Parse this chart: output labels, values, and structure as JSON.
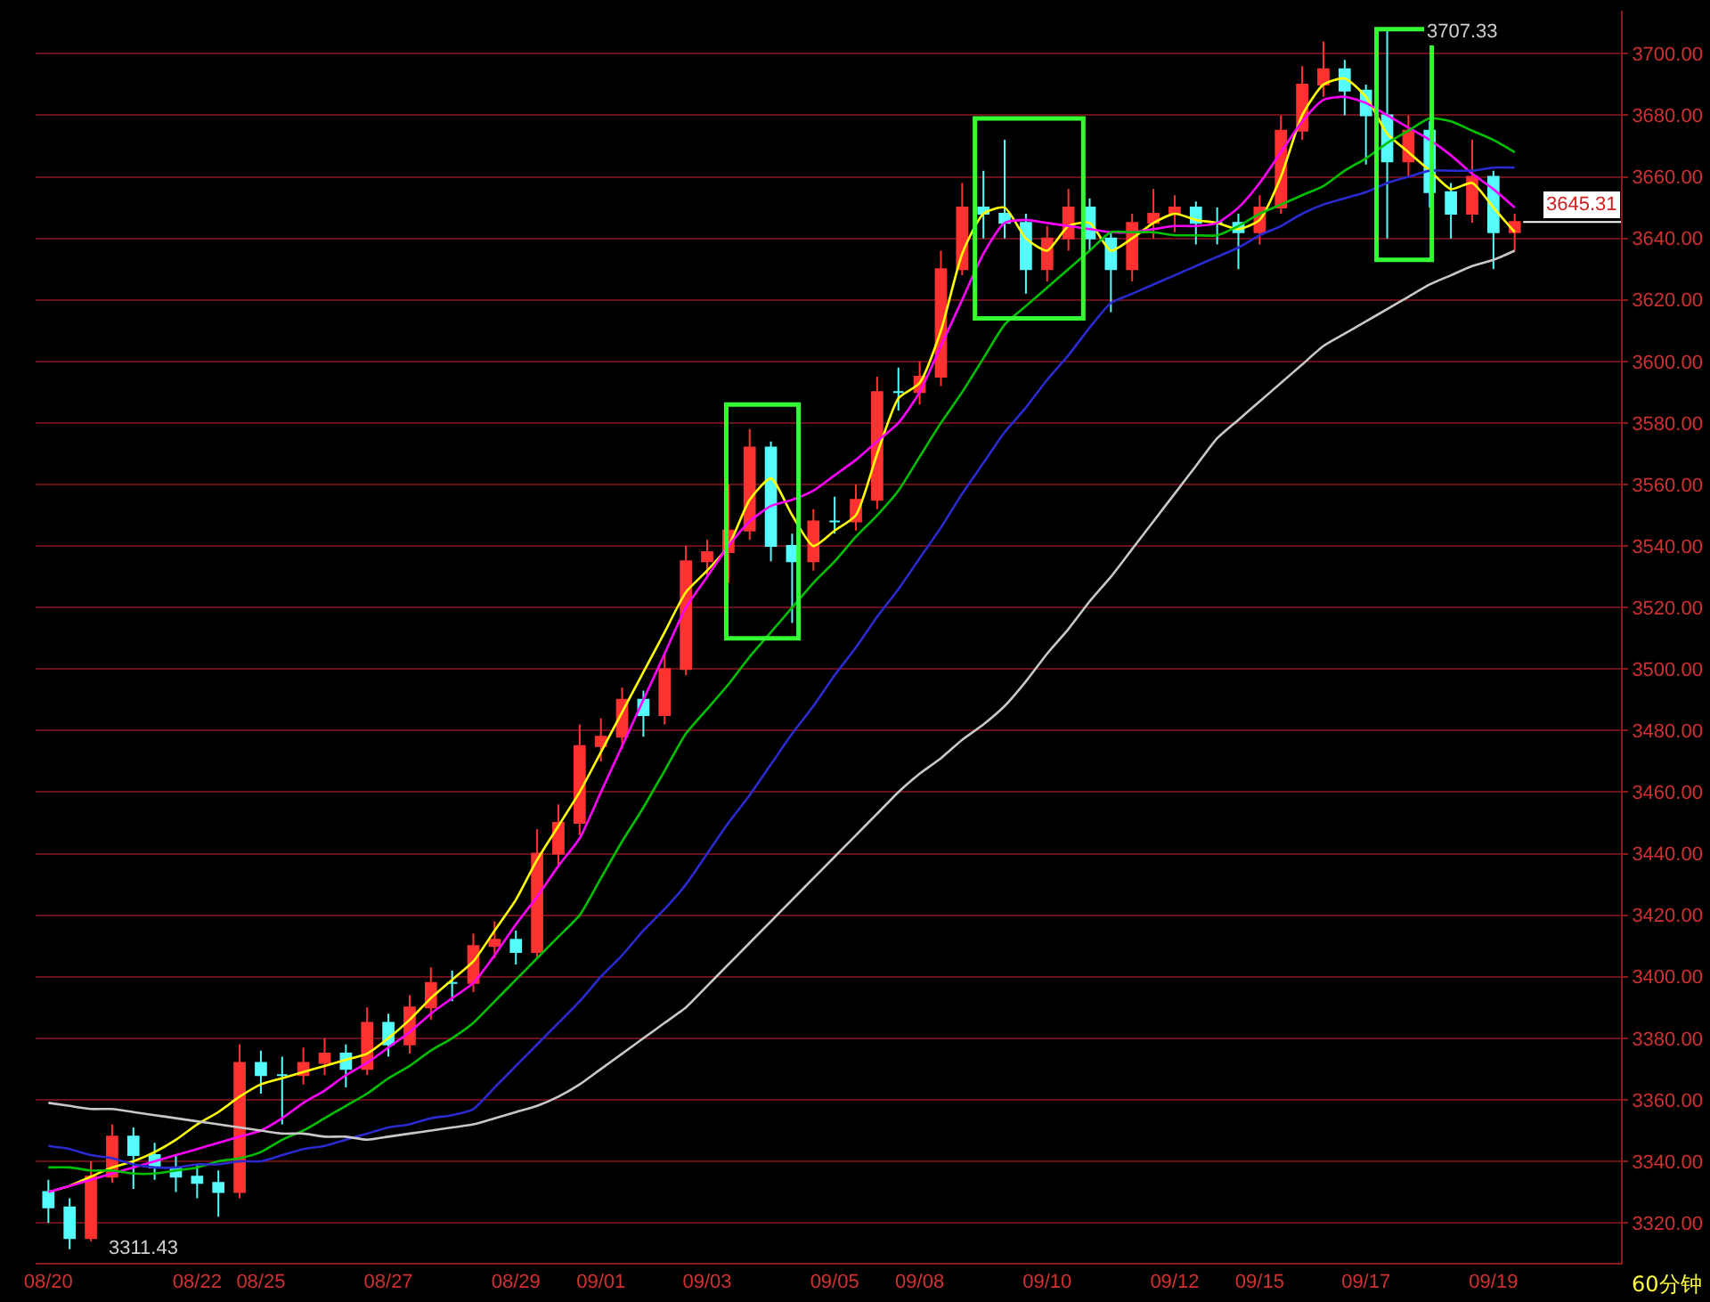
{
  "chart_data": {
    "type": "candlestick",
    "categories": [
      "08/20",
      null,
      null,
      null,
      null,
      null,
      null,
      "08/22",
      null,
      null,
      "08/25",
      null,
      null,
      null,
      null,
      null,
      "08/27",
      null,
      null,
      null,
      null,
      null,
      "08/29",
      null,
      null,
      null,
      "09/01",
      null,
      null,
      null,
      null,
      "09/03",
      null,
      null,
      null,
      null,
      null,
      "09/05",
      null,
      null,
      null,
      "09/08",
      null,
      null,
      null,
      null,
      null,
      "09/10",
      null,
      null,
      null,
      null,
      null,
      "09/12",
      null,
      null,
      null,
      "09/15",
      null,
      null,
      null,
      null,
      "09/17",
      null,
      null,
      null,
      null,
      null,
      "09/19",
      null
    ],
    "ohlc": [
      [
        3330,
        3334,
        3320,
        3325
      ],
      [
        3325,
        3328,
        3311.43,
        3315
      ],
      [
        3315,
        3340,
        3314,
        3335
      ],
      [
        3335,
        3352,
        3333,
        3348
      ],
      [
        3348,
        3351,
        3331,
        3342
      ],
      [
        3342,
        3346,
        3334,
        3338
      ],
      [
        3338,
        3342,
        3330,
        3335
      ],
      [
        3335,
        3339,
        3328,
        3333
      ],
      [
        3333,
        3337,
        3322,
        3330
      ],
      [
        3330,
        3378,
        3328,
        3372
      ],
      [
        3372,
        3376,
        3362,
        3368
      ],
      [
        3368,
        3374,
        3352,
        3368
      ],
      [
        3368,
        3377,
        3365,
        3372
      ],
      [
        3372,
        3380,
        3368,
        3375
      ],
      [
        3375,
        3378,
        3364,
        3370
      ],
      [
        3370,
        3390,
        3368,
        3385
      ],
      [
        3385,
        3388,
        3374,
        3378
      ],
      [
        3378,
        3394,
        3375,
        3390
      ],
      [
        3390,
        3403,
        3386,
        3398
      ],
      [
        3398,
        3402,
        3392,
        3398
      ],
      [
        3398,
        3414,
        3395,
        3410
      ],
      [
        3410,
        3418,
        3406,
        3412
      ],
      [
        3412,
        3415,
        3404,
        3408
      ],
      [
        3408,
        3448,
        3406,
        3440
      ],
      [
        3440,
        3456,
        3436,
        3450
      ],
      [
        3450,
        3482,
        3446,
        3475
      ],
      [
        3475,
        3484,
        3470,
        3478
      ],
      [
        3478,
        3494,
        3474,
        3490
      ],
      [
        3490,
        3493,
        3478,
        3485
      ],
      [
        3485,
        3505,
        3482,
        3500
      ],
      [
        3500,
        3540,
        3498,
        3535
      ],
      [
        3535,
        3542,
        3530,
        3538
      ],
      [
        3538,
        3560,
        3528,
        3545
      ],
      [
        3545,
        3578,
        3542,
        3572
      ],
      [
        3572,
        3574,
        3535,
        3540
      ],
      [
        3540,
        3544,
        3515,
        3535
      ],
      [
        3535,
        3552,
        3532,
        3548
      ],
      [
        3548,
        3556,
        3544,
        3548
      ],
      [
        3548,
        3560,
        3545,
        3555
      ],
      [
        3555,
        3595,
        3552,
        3590
      ],
      [
        3590,
        3598,
        3584,
        3590
      ],
      [
        3590,
        3600,
        3586,
        3595
      ],
      [
        3595,
        3636,
        3592,
        3630
      ],
      [
        3630,
        3658,
        3628,
        3650
      ],
      [
        3650,
        3662,
        3640,
        3648
      ],
      [
        3648,
        3672,
        3640,
        3645
      ],
      [
        3645,
        3648,
        3622,
        3630
      ],
      [
        3630,
        3644,
        3626,
        3640
      ],
      [
        3640,
        3656,
        3636,
        3650
      ],
      [
        3650,
        3653,
        3636,
        3640
      ],
      [
        3640,
        3642,
        3616,
        3630
      ],
      [
        3630,
        3648,
        3626,
        3645
      ],
      [
        3645,
        3656,
        3640,
        3648
      ],
      [
        3648,
        3654,
        3642,
        3650
      ],
      [
        3650,
        3652,
        3638,
        3645
      ],
      [
        3645,
        3650,
        3638,
        3645
      ],
      [
        3645,
        3648,
        3630,
        3642
      ],
      [
        3642,
        3654,
        3638,
        3650
      ],
      [
        3650,
        3680,
        3648,
        3675
      ],
      [
        3675,
        3696,
        3672,
        3690
      ],
      [
        3690,
        3704,
        3686,
        3695
      ],
      [
        3695,
        3698,
        3680,
        3688
      ],
      [
        3688,
        3690,
        3664,
        3680
      ],
      [
        3680,
        3707.33,
        3640,
        3665
      ],
      [
        3665,
        3680,
        3660,
        3675
      ],
      [
        3675,
        3678,
        3650,
        3655
      ],
      [
        3655,
        3658,
        3640,
        3648
      ],
      [
        3648,
        3672,
        3645,
        3660
      ],
      [
        3660,
        3662,
        3630,
        3642
      ],
      [
        3642,
        3648,
        3636,
        3645.31
      ]
    ],
    "colors": [
      "#54fcfc",
      "#54fcfc",
      "#ff3232",
      "#ff3232",
      "#54fcfc",
      "#54fcfc",
      "#54fcfc",
      "#54fcfc",
      "#54fcfc",
      "#ff3232",
      "#54fcfc",
      "#54fcfc",
      "#ff3232",
      "#ff3232",
      "#54fcfc",
      "#ff3232",
      "#54fcfc",
      "#ff3232",
      "#ff3232",
      "#54fcfc",
      "#ff3232",
      "#ff3232",
      "#54fcfc",
      "#ff3232",
      "#ff3232",
      "#ff3232",
      "#ff3232",
      "#ff3232",
      "#54fcfc",
      "#ff3232",
      "#ff3232",
      "#ff3232",
      "#ff3232",
      "#ff3232",
      "#54fcfc",
      "#54fcfc",
      "#ff3232",
      "#54fcfc",
      "#ff3232",
      "#ff3232",
      "#54fcfc",
      "#ff3232",
      "#ff3232",
      "#ff3232",
      "#54fcfc",
      "#54fcfc",
      "#54fcfc",
      "#ff3232",
      "#ff3232",
      "#54fcfc",
      "#54fcfc",
      "#ff3232",
      "#ff3232",
      "#ff3232",
      "#54fcfc",
      "#54fcfc",
      "#54fcfc",
      "#ff3232",
      "#ff3232",
      "#ff3232",
      "#ff3232",
      "#54fcfc",
      "#54fcfc",
      "#54fcfc",
      "#ff3232",
      "#54fcfc",
      "#54fcfc",
      "#ff3232",
      "#54fcfc",
      "#ff3232"
    ],
    "series": [
      {
        "type": "line",
        "color": "#ffff00",
        "values": [
          3330,
          3332,
          3335,
          3338,
          3340,
          3343,
          3347,
          3352,
          3356,
          3361,
          3365,
          3367,
          3369,
          3371,
          3373,
          3375,
          3380,
          3386,
          3393,
          3399,
          3405,
          3415,
          3425,
          3438,
          3449,
          3460,
          3473,
          3486,
          3499,
          3512,
          3525,
          3532,
          3540,
          3555,
          3562,
          3550,
          3540,
          3545,
          3550,
          3570,
          3588,
          3593,
          3610,
          3635,
          3648,
          3650,
          3640,
          3636,
          3644,
          3645,
          3636,
          3640,
          3645,
          3648,
          3646,
          3645,
          3643,
          3646,
          3660,
          3680,
          3690,
          3692,
          3686,
          3674,
          3668,
          3662,
          3656,
          3658,
          3650,
          3642
        ]
      },
      {
        "type": "line",
        "color": "#ff00ff",
        "values": [
          3330,
          3332,
          3334,
          3336,
          3338,
          3340,
          3342,
          3344,
          3346,
          3348,
          3350,
          3354,
          3359,
          3363,
          3368,
          3372,
          3377,
          3382,
          3388,
          3393,
          3398,
          3407,
          3417,
          3426,
          3436,
          3445,
          3460,
          3475,
          3490,
          3505,
          3520,
          3530,
          3540,
          3548,
          3553,
          3555,
          3558,
          3563,
          3568,
          3574,
          3580,
          3590,
          3605,
          3620,
          3635,
          3645,
          3646,
          3645,
          3644,
          3643,
          3642,
          3642,
          3643,
          3644,
          3644,
          3645,
          3650,
          3658,
          3668,
          3678,
          3685,
          3686,
          3684,
          3680,
          3676,
          3672,
          3667,
          3661,
          3656,
          3650
        ]
      },
      {
        "type": "line",
        "color": "#00c000",
        "values": [
          3338,
          3338,
          3337,
          3337,
          3336,
          3336,
          3337,
          3338,
          3340,
          3341,
          3343,
          3347,
          3350,
          3354,
          3358,
          3362,
          3367,
          3371,
          3376,
          3380,
          3385,
          3392,
          3399,
          3406,
          3413,
          3420,
          3432,
          3444,
          3455,
          3467,
          3479,
          3487,
          3495,
          3504,
          3512,
          3520,
          3528,
          3535,
          3543,
          3550,
          3558,
          3569,
          3580,
          3590,
          3601,
          3612,
          3618,
          3624,
          3630,
          3636,
          3642,
          3642,
          3642,
          3641,
          3641,
          3641,
          3644,
          3648,
          3651,
          3654,
          3657,
          3662,
          3666,
          3671,
          3675,
          3679,
          3678,
          3675,
          3672,
          3668
        ]
      },
      {
        "type": "line",
        "color": "#2a2ad0",
        "values": [
          3345,
          3344,
          3342,
          3341,
          3339,
          3338,
          3338,
          3339,
          3339,
          3340,
          3340,
          3342,
          3344,
          3345,
          3347,
          3349,
          3351,
          3352,
          3354,
          3355,
          3357,
          3364,
          3371,
          3378,
          3385,
          3392,
          3400,
          3407,
          3415,
          3422,
          3430,
          3440,
          3450,
          3459,
          3469,
          3479,
          3488,
          3498,
          3507,
          3517,
          3526,
          3536,
          3546,
          3557,
          3567,
          3577,
          3585,
          3594,
          3602,
          3611,
          3619,
          3622,
          3625,
          3628,
          3631,
          3634,
          3637,
          3641,
          3644,
          3648,
          3651,
          3653,
          3655,
          3658,
          3660,
          3662,
          3662,
          3662,
          3663,
          3663
        ]
      },
      {
        "type": "line",
        "color": "#c8c8c8",
        "values": [
          3359,
          3358,
          3357,
          3357,
          3356,
          3355,
          3354,
          3353,
          3352,
          3351,
          3350,
          3349,
          3349,
          3348,
          3348,
          3347,
          3348,
          3349,
          3350,
          3351,
          3352,
          3354,
          3356,
          3358,
          3361,
          3365,
          3370,
          3375,
          3380,
          3385,
          3390,
          3397,
          3404,
          3411,
          3418,
          3425,
          3432,
          3439,
          3446,
          3453,
          3460,
          3466,
          3471,
          3477,
          3482,
          3488,
          3496,
          3505,
          3513,
          3522,
          3530,
          3539,
          3548,
          3557,
          3566,
          3575,
          3581,
          3587,
          3593,
          3599,
          3605,
          3609,
          3613,
          3617,
          3621,
          3625,
          3628,
          3631,
          3633,
          3636
        ]
      }
    ],
    "ylim": [
      3307,
      3714
    ],
    "yticks": [
      {
        "value": 3320,
        "label": "3320.00"
      },
      {
        "value": 3340,
        "label": "3340.00"
      },
      {
        "value": 3360,
        "label": "3360.00"
      },
      {
        "value": 3380,
        "label": "3380.00"
      },
      {
        "value": 3400,
        "label": "3400.00"
      },
      {
        "value": 3420,
        "label": "3420.00"
      },
      {
        "value": 3440,
        "label": "3440.00"
      },
      {
        "value": 3460,
        "label": "3460.00"
      },
      {
        "value": 3480,
        "label": "3480.00"
      },
      {
        "value": 3500,
        "label": "3500.00"
      },
      {
        "value": 3520,
        "label": "3520.00"
      },
      {
        "value": 3540,
        "label": "3540.00"
      },
      {
        "value": 3560,
        "label": "3560.00"
      },
      {
        "value": 3580,
        "label": "3580.00"
      },
      {
        "value": 3600,
        "label": "3600.00"
      },
      {
        "value": 3620,
        "label": "3620.00"
      },
      {
        "value": 3640,
        "label": "3640.00"
      },
      {
        "value": 3660,
        "label": "3660.00"
      },
      {
        "value": 3680,
        "label": "3680.00"
      },
      {
        "value": 3700,
        "label": "3700.00"
      }
    ],
    "grid": "y",
    "annotations": [
      {
        "text": "3707.33",
        "y": 3707.33
      },
      {
        "text": "3311.43",
        "y": 3311.43
      },
      "60分钟"
    ],
    "ref_lines": [
      {
        "axis": "y",
        "value": 3645.31,
        "label": "3645.31",
        "color": "#ffffff"
      }
    ]
  }
}
